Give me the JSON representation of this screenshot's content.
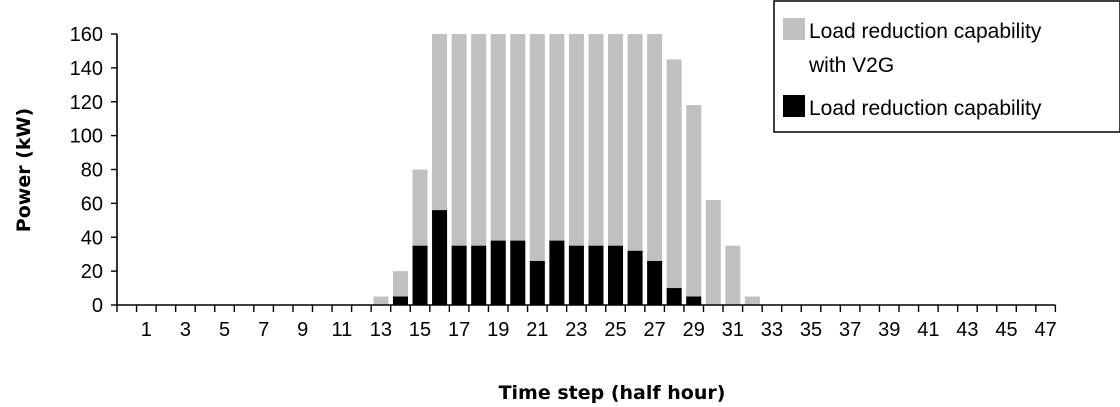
{
  "chart_data": {
    "type": "bar",
    "stacked": "overlay",
    "xlabel": "Time step (half hour)",
    "ylabel": "Power (kW)",
    "ylim": [
      0,
      160
    ],
    "yticks": [
      0,
      20,
      40,
      60,
      80,
      100,
      120,
      140,
      160
    ],
    "x": [
      0,
      1,
      2,
      3,
      4,
      5,
      6,
      7,
      8,
      9,
      10,
      11,
      12,
      13,
      14,
      15,
      16,
      17,
      18,
      19,
      20,
      21,
      22,
      23,
      24,
      25,
      26,
      27,
      28,
      29,
      30,
      31,
      32,
      33,
      34,
      35,
      36,
      37,
      38,
      39,
      40,
      41,
      42,
      43,
      44,
      45,
      46,
      47
    ],
    "xtick_labels": [
      "1",
      "3",
      "5",
      "7",
      "9",
      "11",
      "13",
      "15",
      "17",
      "19",
      "21",
      "23",
      "25",
      "27",
      "29",
      "31",
      "33",
      "35",
      "37",
      "39",
      "41",
      "43",
      "45",
      "47"
    ],
    "legend_position": "top-right",
    "series": [
      {
        "name": "Load reduction capability with V2G",
        "color": "#c0c0c0",
        "values": [
          0,
          0,
          0,
          0,
          0,
          0,
          0,
          0,
          0,
          0,
          0,
          0,
          0,
          5,
          20,
          80,
          160,
          160,
          160,
          160,
          160,
          160,
          160,
          160,
          160,
          160,
          160,
          160,
          145,
          118,
          62,
          35,
          5,
          0,
          0,
          0,
          0,
          0,
          0,
          0,
          0,
          0,
          0,
          0,
          0,
          0,
          0,
          0
        ]
      },
      {
        "name": "Load reduction capability",
        "color": "#000000",
        "values": [
          0,
          0,
          0,
          0,
          0,
          0,
          0,
          0,
          0,
          0,
          0,
          0,
          0,
          0,
          5,
          35,
          56,
          35,
          35,
          38,
          38,
          26,
          38,
          35,
          35,
          35,
          32,
          26,
          10,
          5,
          0,
          0,
          0,
          0,
          0,
          0,
          0,
          0,
          0,
          0,
          0,
          0,
          0,
          0,
          0,
          0,
          0,
          0
        ]
      }
    ]
  }
}
